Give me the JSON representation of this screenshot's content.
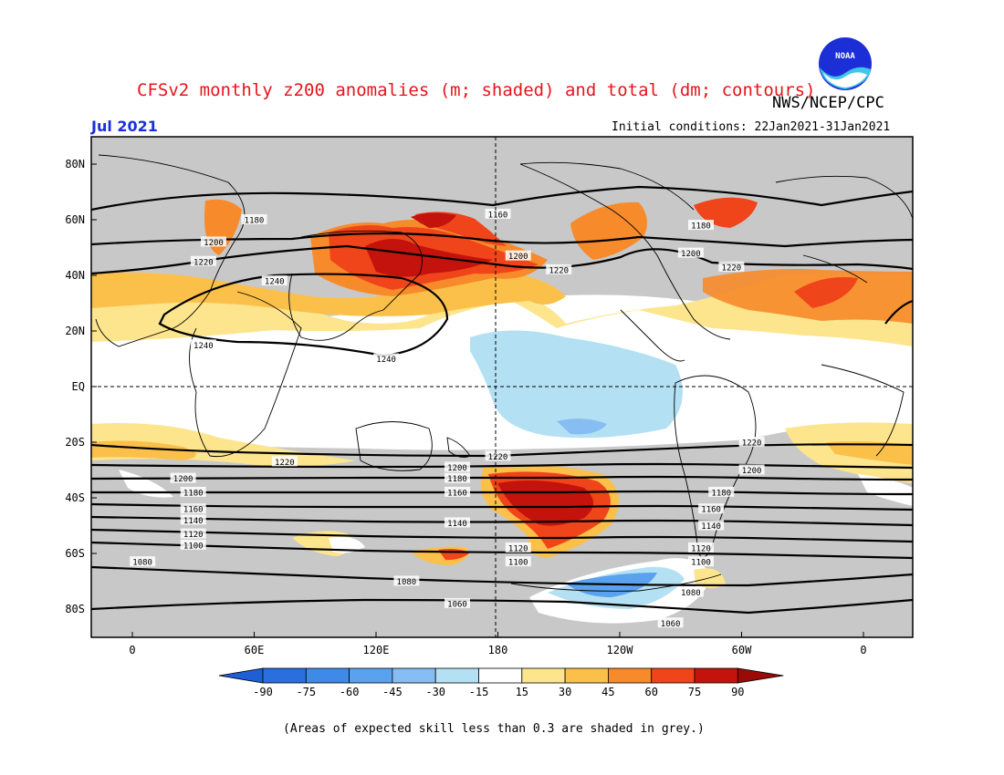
{
  "header": {
    "title": "CFSv2 monthly z200 anomalies (m; shaded) and total (dm; contours)",
    "agency": "NWS/NCEP/CPC",
    "month": "Jul 2021",
    "initial_conditions": "Initial conditions: 22Jan2021-31Jan2021",
    "logo_text": "NOAA"
  },
  "axes": {
    "lat_labels": [
      "80N",
      "60N",
      "40N",
      "20N",
      "EQ",
      "20S",
      "40S",
      "60S",
      "80S"
    ],
    "lon_labels": [
      "0",
      "60E",
      "120E",
      "180",
      "120W",
      "60W",
      "0"
    ]
  },
  "contours": [
    {
      "label": "1180",
      "at": "60N 60E"
    },
    {
      "label": "1160",
      "at": "62N 180"
    },
    {
      "label": "1180",
      "at": "58N 80W"
    },
    {
      "label": "1200",
      "at": "52N 40E"
    },
    {
      "label": "1200",
      "at": "47N 170W"
    },
    {
      "label": "1200",
      "at": "48N 85W"
    },
    {
      "label": "1220",
      "at": "45N 35E"
    },
    {
      "label": "1220",
      "at": "42N 150W"
    },
    {
      "label": "1220",
      "at": "43N 65W"
    },
    {
      "label": "1240",
      "at": "38N 70E"
    },
    {
      "label": "1240",
      "at": "15N 35E"
    },
    {
      "label": "1240",
      "at": "10N 125E"
    },
    {
      "label": "1220",
      "at": "25S 180W"
    },
    {
      "label": "1220",
      "at": "20S 55W"
    },
    {
      "label": "1220",
      "at": "27S 75E"
    },
    {
      "label": "1200",
      "at": "33S 25E"
    },
    {
      "label": "1200",
      "at": "29S 160E"
    },
    {
      "label": "1200",
      "at": "30S 55W"
    },
    {
      "label": "1180",
      "at": "33S 160E"
    },
    {
      "label": "1180",
      "at": "38S 30E"
    },
    {
      "label": "1180",
      "at": "38S 70W"
    },
    {
      "label": "1160",
      "at": "38S 160E"
    },
    {
      "label": "1160",
      "at": "44S 30E"
    },
    {
      "label": "1160",
      "at": "44S 75W"
    },
    {
      "label": "1140",
      "at": "48S 30E"
    },
    {
      "label": "1140",
      "at": "49S 160E"
    },
    {
      "label": "1140",
      "at": "50S 75W"
    },
    {
      "label": "1120",
      "at": "53S 30E"
    },
    {
      "label": "1120",
      "at": "58S 170W"
    },
    {
      "label": "1120",
      "at": "58S 80W"
    },
    {
      "label": "1100",
      "at": "57S 30E"
    },
    {
      "label": "1100",
      "at": "63S 170W"
    },
    {
      "label": "1100",
      "at": "63S 80W"
    },
    {
      "label": "1080",
      "at": "63S 5E"
    },
    {
      "label": "1080",
      "at": "70S 135E"
    },
    {
      "label": "1080",
      "at": "74S 85W"
    },
    {
      "label": "1060",
      "at": "78S 160E"
    },
    {
      "label": "1060",
      "at": "85S 95W"
    }
  ],
  "colorbar": {
    "labels": [
      "-90",
      "-75",
      "-60",
      "-45",
      "-30",
      "-15",
      "15",
      "30",
      "45",
      "60",
      "75",
      "90"
    ],
    "colors": [
      "#2a6fe0",
      "#3f8ae8",
      "#5aa2ee",
      "#86bdf2",
      "#b4e0f3",
      "#ffffff",
      "#fde58e",
      "#fbc04a",
      "#f78a2a",
      "#f0441a",
      "#c4130c"
    ],
    "arrow_low": "#1e5fd8",
    "arrow_high": "#9a0a06"
  },
  "footnote": "(Areas of expected skill less than 0.3 are shaded in grey.)",
  "colors": {
    "grey_skill": "#c8c8c8",
    "title_red": "#e8141a",
    "month_blue": "#1a2ee0"
  }
}
